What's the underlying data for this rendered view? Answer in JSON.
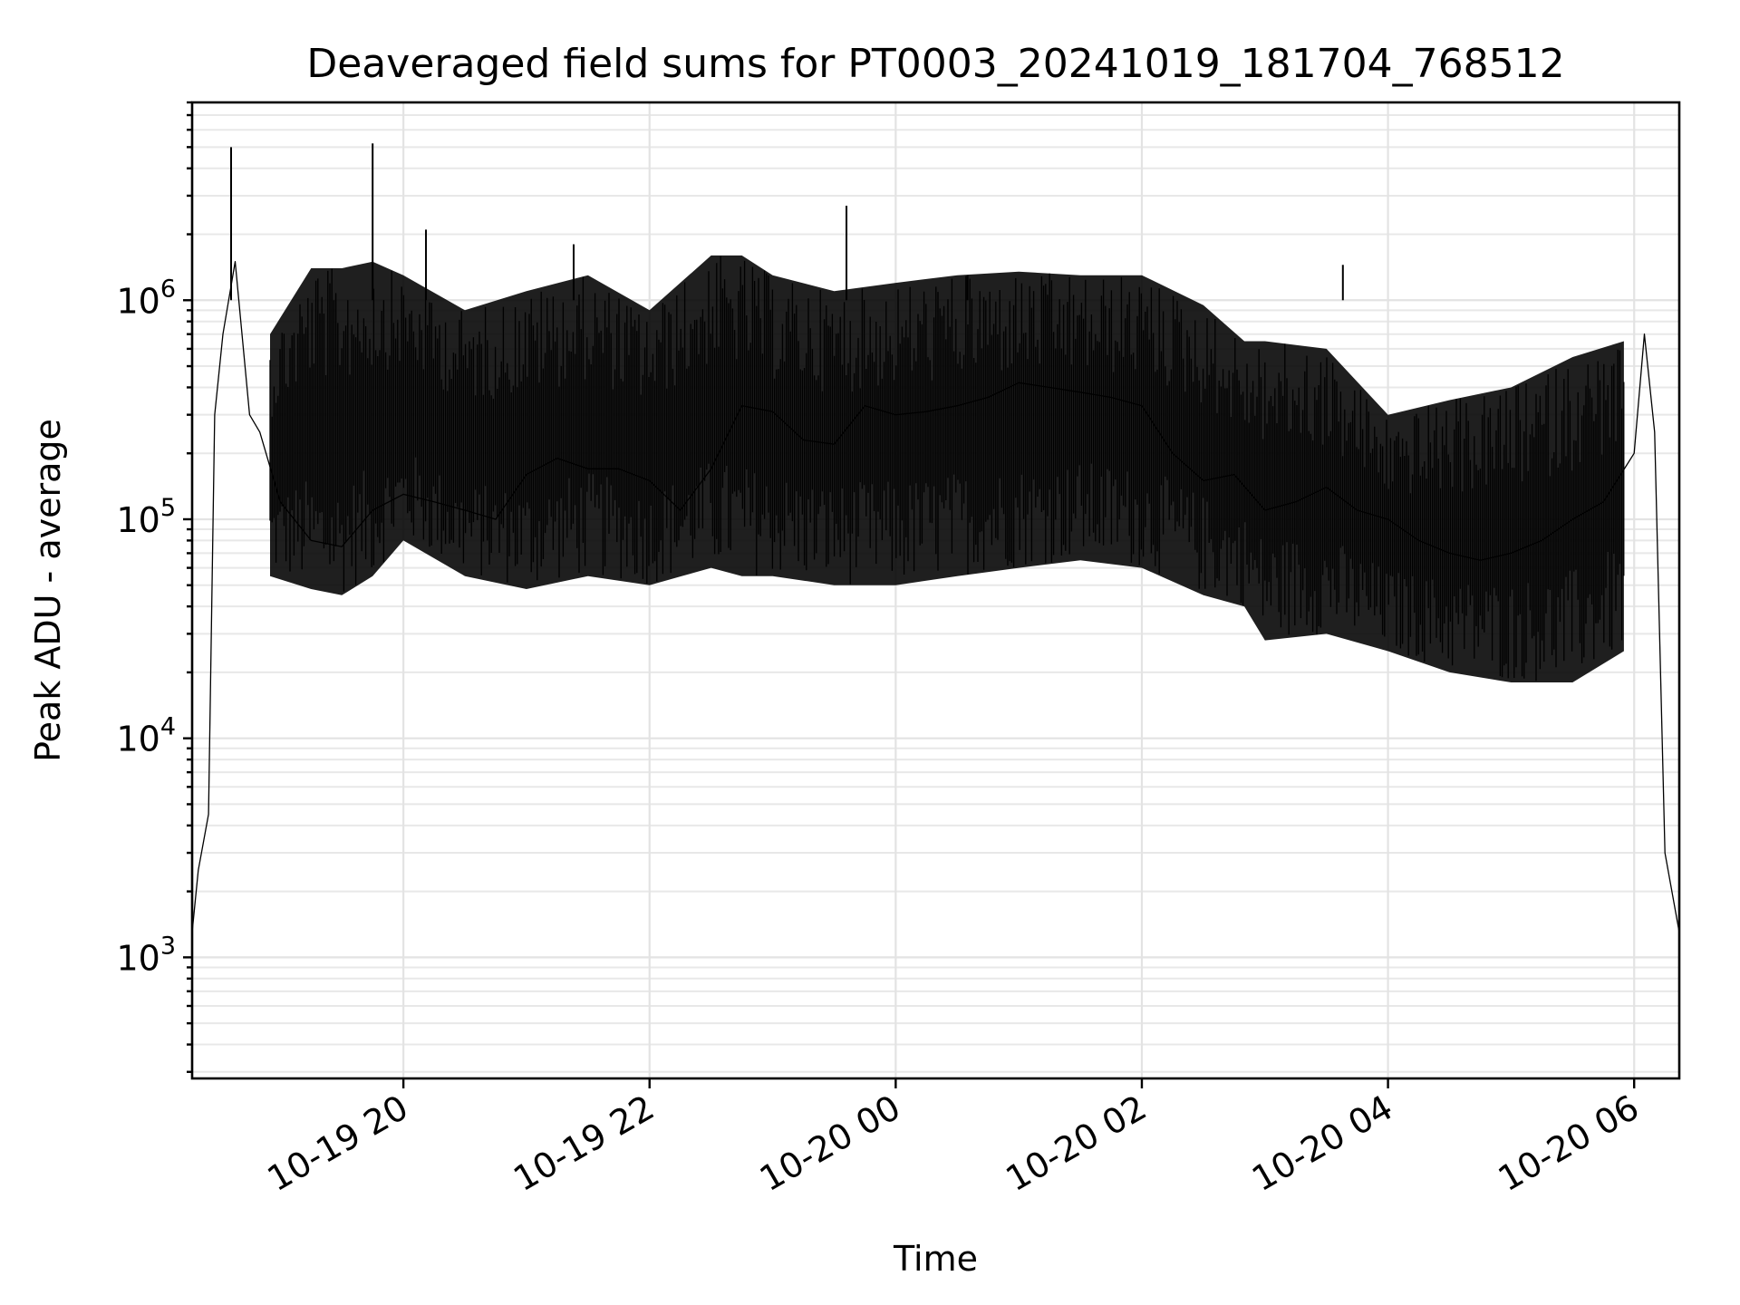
{
  "chart_data": {
    "type": "line",
    "title": "Deaveraged field sums for PT0003_20241019_181704_768512",
    "xlabel": "Time",
    "ylabel": "Peak ADU - average",
    "yscale": "log",
    "ylim": [
      280,
      8000000
    ],
    "xlim": [
      "2024-10-19 18:17",
      "2024-10-20 06:22"
    ],
    "grid": true,
    "x_ticks": [
      {
        "label": "10-19 20",
        "value": "2024-10-19 20:00"
      },
      {
        "label": "10-19 22",
        "value": "2024-10-19 22:00"
      },
      {
        "label": "10-20 00",
        "value": "2024-10-20 00:00"
      },
      {
        "label": "10-20 02",
        "value": "2024-10-20 02:00"
      },
      {
        "label": "10-20 04",
        "value": "2024-10-20 04:00"
      },
      {
        "label": "10-20 06",
        "value": "2024-10-20 06:00"
      }
    ],
    "y_ticks": [
      {
        "base": "10",
        "exp": "3",
        "value": 1000
      },
      {
        "base": "10",
        "exp": "4",
        "value": 10000
      },
      {
        "base": "10",
        "exp": "5",
        "value": 100000
      },
      {
        "base": "10",
        "exp": "6",
        "value": 1000000
      }
    ],
    "series": [
      {
        "color": "#000000",
        "x": [
          "2024-10-19 18:17",
          "2024-10-19 18:20",
          "2024-10-19 18:25",
          "2024-10-19 18:28",
          "2024-10-19 18:32",
          "2024-10-19 18:38",
          "2024-10-19 18:45",
          "2024-10-19 18:50",
          "2024-10-19 19:00",
          "2024-10-19 19:15",
          "2024-10-19 19:30",
          "2024-10-19 19:45",
          "2024-10-19 20:00",
          "2024-10-19 20:15",
          "2024-10-19 20:30",
          "2024-10-19 20:45",
          "2024-10-19 21:00",
          "2024-10-19 21:15",
          "2024-10-19 21:30",
          "2024-10-19 21:45",
          "2024-10-19 22:00",
          "2024-10-19 22:15",
          "2024-10-19 22:30",
          "2024-10-19 22:45",
          "2024-10-19 23:00",
          "2024-10-19 23:15",
          "2024-10-19 23:30",
          "2024-10-19 23:45",
          "2024-10-20 00:00",
          "2024-10-20 00:15",
          "2024-10-20 00:30",
          "2024-10-20 00:45",
          "2024-10-20 01:00",
          "2024-10-20 01:15",
          "2024-10-20 01:30",
          "2024-10-20 01:45",
          "2024-10-20 02:00",
          "2024-10-20 02:15",
          "2024-10-20 02:30",
          "2024-10-20 02:45",
          "2024-10-20 03:00",
          "2024-10-20 03:15",
          "2024-10-20 03:30",
          "2024-10-20 03:45",
          "2024-10-20 04:00",
          "2024-10-20 04:15",
          "2024-10-20 04:30",
          "2024-10-20 04:45",
          "2024-10-20 05:00",
          "2024-10-20 05:15",
          "2024-10-20 05:30",
          "2024-10-20 05:45",
          "2024-10-20 06:00",
          "2024-10-20 06:05",
          "2024-10-20 06:10",
          "2024-10-20 06:15",
          "2024-10-20 06:22"
        ],
        "y": [
          1300,
          2500,
          4500,
          300000,
          700000,
          1500000,
          300000,
          250000,
          120000,
          80000,
          75000,
          110000,
          130000,
          120000,
          110000,
          100000,
          160000,
          190000,
          170000,
          170000,
          150000,
          110000,
          170000,
          330000,
          310000,
          230000,
          220000,
          330000,
          300000,
          310000,
          330000,
          360000,
          420000,
          400000,
          380000,
          360000,
          330000,
          200000,
          150000,
          160000,
          110000,
          120000,
          140000,
          110000,
          100000,
          80000,
          70000,
          65000,
          70000,
          80000,
          100000,
          120000,
          200000,
          700000,
          250000,
          3000,
          1300
        ]
      }
    ],
    "spikes": [
      {
        "x": "2024-10-19 18:36",
        "y": 5000000
      },
      {
        "x": "2024-10-19 19:45",
        "y": 5200000
      },
      {
        "x": "2024-10-19 20:11",
        "y": 2100000
      },
      {
        "x": "2024-10-19 21:23",
        "y": 1800000
      },
      {
        "x": "2024-10-19 23:36",
        "y": 2700000
      },
      {
        "x": "2024-10-20 03:38",
        "y": 1450000
      },
      {
        "x": "2024-10-20 00:35",
        "y": 1300000
      }
    ],
    "envelope": {
      "x": [
        "2024-10-19 18:55",
        "2024-10-19 19:15",
        "2024-10-19 19:30",
        "2024-10-19 19:45",
        "2024-10-19 20:00",
        "2024-10-19 20:30",
        "2024-10-19 21:00",
        "2024-10-19 21:30",
        "2024-10-19 22:00",
        "2024-10-19 22:30",
        "2024-10-19 22:45",
        "2024-10-19 23:00",
        "2024-10-19 23:30",
        "2024-10-20 00:00",
        "2024-10-20 00:30",
        "2024-10-20 01:00",
        "2024-10-20 01:30",
        "2024-10-20 02:00",
        "2024-10-20 02:30",
        "2024-10-20 02:50",
        "2024-10-20 03:00",
        "2024-10-20 03:30",
        "2024-10-20 04:00",
        "2024-10-20 04:30",
        "2024-10-20 05:00",
        "2024-10-20 05:30",
        "2024-10-20 05:55"
      ],
      "upper": [
        700000,
        1400000,
        1400000,
        1500000,
        1300000,
        900000,
        1100000,
        1300000,
        900000,
        1600000,
        1600000,
        1300000,
        1100000,
        1200000,
        1300000,
        1350000,
        1300000,
        1300000,
        950000,
        650000,
        650000,
        600000,
        300000,
        350000,
        400000,
        550000,
        650000
      ],
      "lower": [
        55000,
        48000,
        45000,
        55000,
        80000,
        55000,
        48000,
        55000,
        50000,
        60000,
        55000,
        55000,
        50000,
        50000,
        55000,
        60000,
        65000,
        60000,
        45000,
        40000,
        28000,
        30000,
        25000,
        20000,
        18000,
        18000,
        25000
      ]
    }
  }
}
